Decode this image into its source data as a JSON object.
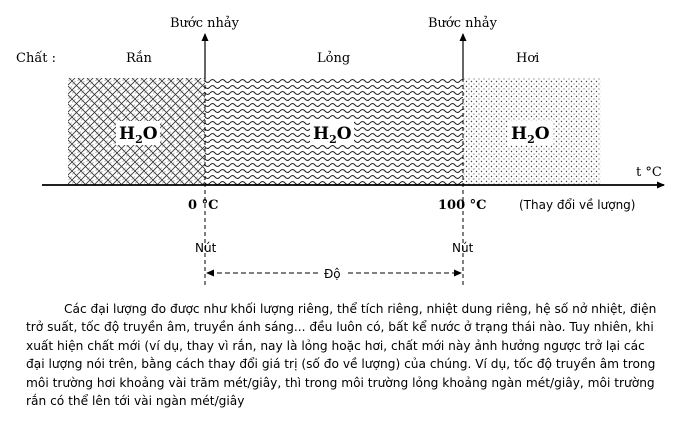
{
  "diagram": {
    "row_label": "Chất :",
    "jump_labels": [
      "Bước nhảy",
      "Bước nhảy"
    ],
    "phases": [
      {
        "label": "Rắn",
        "formula_main": "H",
        "formula_sub": "2",
        "formula_tail": "O",
        "pattern": "crosshatch"
      },
      {
        "label": "Lỏng",
        "formula_main": "H",
        "formula_sub": "2",
        "formula_tail": "O",
        "pattern": "wave"
      },
      {
        "label": "Hơi",
        "formula_main": "H",
        "formula_sub": "2",
        "formula_tail": "O",
        "pattern": "dots"
      }
    ],
    "axis_label": "t °C",
    "ticks": [
      "0 °C",
      "100 °C"
    ],
    "quantity_note": "(Thay đổi về lượng)",
    "node_labels": [
      "Nút",
      "Nút"
    ],
    "degree_label": "Độ"
  },
  "paragraph": "Các đại lượng đo được như khối lượng riêng, thể tích riêng, nhiệt dung riêng, hệ số nở nhiệt, điện trở suất, tốc độ truyền âm, truyền ánh sáng... đều luôn có, bất kể nước ở trạng thái nào. Tuy nhiên, khi xuất hiện chất mới (ví dụ, thay vì rắn, nay là lỏng hoặc hơi, chất mới này ảnh hưởng ngược trở lại các đại lượng nói trên, bằng cách thay đổi giá trị (số đo về lượng) của chúng. Ví dụ, tốc độ truyền âm trong môi trường hơi khoảng vài trăm mét/giây, thì trong môi trường lỏng khoảng ngàn mét/giây, môi trường rắn có thể lên tới vài ngàn mét/giây"
}
